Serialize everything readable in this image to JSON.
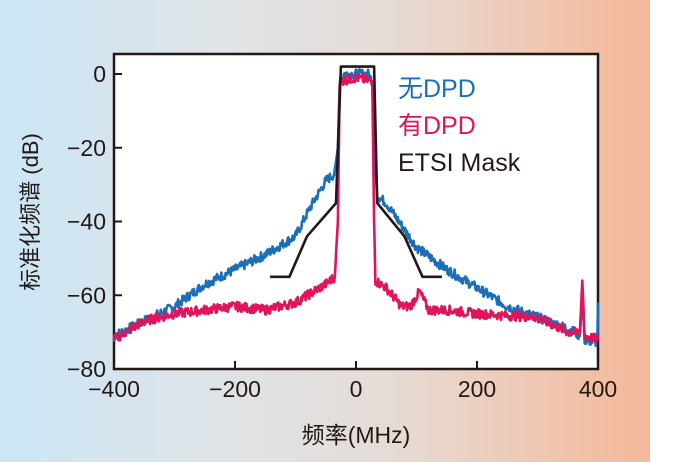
{
  "chart_data": {
    "type": "line",
    "title": "",
    "xlabel": "频率(MHz)",
    "ylabel": "标准化频谱 (dB)",
    "xlim": [
      -400,
      400
    ],
    "ylim": [
      -80,
      5
    ],
    "xticks": [
      -400,
      -200,
      0,
      200,
      400
    ],
    "xtick_labels": [
      "−400",
      "−200",
      "0",
      "200",
      "400"
    ],
    "yticks": [
      0,
      -20,
      -40,
      -60,
      -80
    ],
    "ytick_labels": [
      "0",
      "−20",
      "−40",
      "−60",
      "−80"
    ],
    "legend_position": "top-right",
    "series": [
      {
        "name": "无DPD",
        "color": "#1a6fb8",
        "x": [
          -400,
          -350,
          -300,
          -250,
          -200,
          -150,
          -100,
          -75,
          -50,
          -35,
          -30,
          -27,
          -20,
          0,
          20,
          27,
          30,
          35,
          50,
          75,
          100,
          150,
          200,
          250,
          300,
          350,
          370,
          374,
          378,
          395,
          399,
          400
        ],
        "y": [
          -71,
          -67,
          -63,
          -57,
          -53,
          -49,
          -44,
          -36,
          -29,
          -27,
          -20,
          -2,
          0,
          0,
          0,
          -2,
          -20,
          -33,
          -35,
          -41,
          -47,
          -53,
          -58,
          -63,
          -66,
          -69,
          -71,
          -60,
          -72,
          -73,
          -72,
          -62
        ]
      },
      {
        "name": "有DPD",
        "color": "#e0145a",
        "x": [
          -400,
          -350,
          -300,
          -200,
          -150,
          -100,
          -50,
          -35,
          -30,
          -27,
          0,
          27,
          30,
          32,
          50,
          75,
          90,
          105,
          120,
          150,
          200,
          300,
          350,
          370,
          374,
          378,
          400
        ],
        "y": [
          -72,
          -67,
          -65,
          -63,
          -64,
          -62,
          -57,
          -55,
          -40,
          -2,
          -1,
          -2,
          -40,
          -56,
          -58,
          -63,
          -63,
          -59,
          -64,
          -64,
          -65,
          -66,
          -70,
          -70,
          -56,
          -71,
          -72
        ]
      },
      {
        "name": "ETSI Mask",
        "color": "#231815",
        "x": [
          -142,
          -110,
          -81,
          -33,
          -25,
          30,
          35,
          80,
          110,
          142
        ],
        "y": [
          -55,
          -55,
          -44,
          -35,
          2,
          2,
          -35,
          -44,
          -55,
          -55
        ]
      }
    ]
  }
}
